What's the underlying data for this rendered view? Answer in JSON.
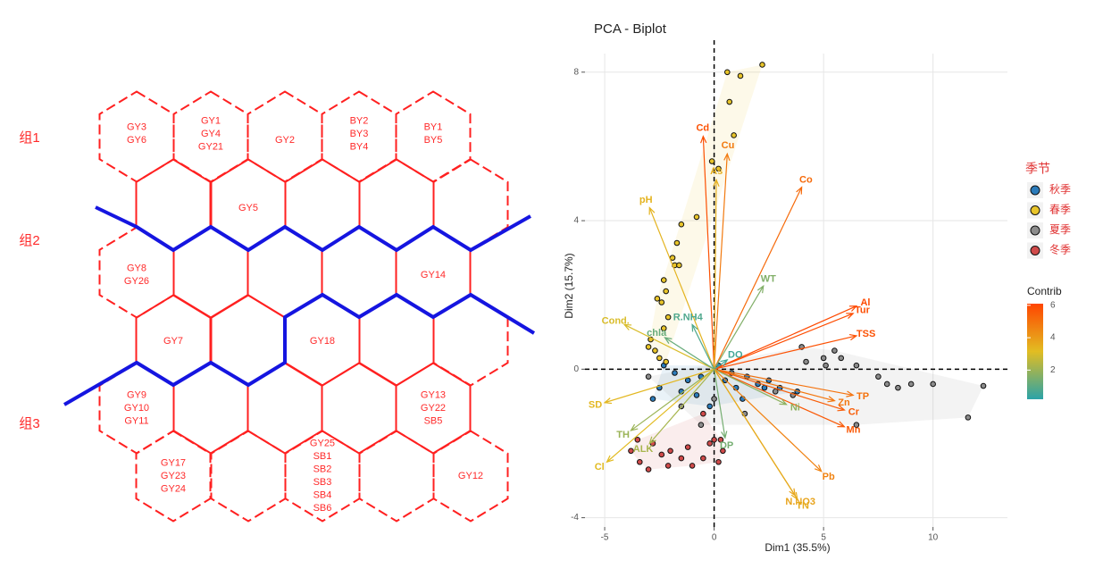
{
  "diagram": {
    "group_labels": [
      "组1",
      "组2",
      "组3"
    ],
    "cells": [
      [
        "GY3",
        "GY6"
      ],
      [
        "GY1",
        "GY4",
        "GY21"
      ],
      [
        "GY2"
      ],
      [
        "BY2",
        "BY3",
        "BY4"
      ],
      [
        "BY1",
        "BY5"
      ],
      [
        "GY5"
      ],
      [
        "GY8",
        "GY26"
      ],
      [
        "GY14"
      ],
      [
        "GY7"
      ],
      [
        "GY18"
      ],
      [
        "GY9",
        "GY10",
        "GY11"
      ],
      [
        "GY13",
        "GY22",
        "SB5"
      ],
      [
        "GY17",
        "GY23",
        "GY24"
      ],
      [
        "GY25",
        "SB1",
        "SB2",
        "SB3",
        "SB4",
        "SB6"
      ],
      [
        "GY12"
      ]
    ]
  },
  "chart_data": {
    "type": "biplot",
    "title": "PCA - Biplot",
    "x_label": "Dim1 (35.5%)",
    "y_label": "Dim2 (15.7%)",
    "xlim": [
      -5.9,
      13.4
    ],
    "ylim": [
      -4.25,
      8.5
    ],
    "xticks": [
      -5,
      0,
      5,
      10
    ],
    "yticks": [
      -4,
      0,
      4,
      8
    ],
    "grid": true,
    "legend_title": "季节",
    "series": [
      {
        "name": "秋季",
        "color": "#2b7bba",
        "x": [
          -2.3,
          -1.8,
          -1.2,
          -0.6,
          0.2,
          0.5,
          1.0,
          1.5,
          2.0,
          2.5,
          3.0,
          3.8,
          -2.5,
          -2.8,
          -1.5,
          0.8,
          2.3,
          -0.2,
          1.3,
          -0.8
        ],
        "y": [
          0.1,
          -0.1,
          -0.3,
          -0.2,
          0.1,
          -0.3,
          -0.5,
          -0.2,
          -0.4,
          -0.3,
          -0.5,
          -0.6,
          -0.5,
          -0.8,
          -0.6,
          -0.1,
          -0.5,
          -1.0,
          -0.8,
          -0.7
        ]
      },
      {
        "name": "春季",
        "color": "#e8c42a",
        "x": [
          0.6,
          2.2,
          1.2,
          0.7,
          0.9,
          0.2,
          -0.1,
          -0.8,
          -1.5,
          -1.7,
          -1.9,
          -2.3,
          -2.2,
          -2.4,
          -2.1,
          -2.6,
          -2.3,
          -2.9,
          -2.7,
          -2.5,
          -2.2,
          -3.0,
          -1.8,
          -1.6
        ],
        "y": [
          8.0,
          8.2,
          7.9,
          7.2,
          6.3,
          5.4,
          5.6,
          4.1,
          3.9,
          3.4,
          3.0,
          2.4,
          2.1,
          1.8,
          1.4,
          1.9,
          1.1,
          0.8,
          0.5,
          0.3,
          0.2,
          0.6,
          2.8,
          2.8
        ]
      },
      {
        "name": "夏季",
        "color": "#8c8c8c",
        "x": [
          4.0,
          5.0,
          5.5,
          6.5,
          7.5,
          7.9,
          8.4,
          9.0,
          10.0,
          12.3,
          11.6,
          6.5,
          5.1,
          4.2,
          3.6,
          2.8,
          -1.5,
          -3.0,
          0.0,
          1.4,
          -0.6,
          5.8
        ],
        "y": [
          0.6,
          0.3,
          0.5,
          0.1,
          -0.2,
          -0.4,
          -0.5,
          -0.4,
          -0.4,
          -0.45,
          -1.3,
          -1.5,
          0.1,
          0.2,
          -0.7,
          -0.6,
          -1.0,
          -0.2,
          -0.8,
          -1.2,
          -1.5,
          0.3
        ]
      },
      {
        "name": "冬季",
        "color": "#d04a4a",
        "x": [
          -3.8,
          -3.4,
          -2.8,
          -2.4,
          -2.0,
          -1.5,
          -1.0,
          -0.5,
          0.2,
          0.4,
          -0.2,
          0.0,
          0.3,
          -3.0,
          -2.1,
          -1.2,
          -0.5,
          -3.5
        ],
        "y": [
          -2.2,
          -2.5,
          -2.0,
          -2.3,
          -2.2,
          -2.4,
          -2.6,
          -2.4,
          -2.5,
          -2.2,
          -2.0,
          -1.9,
          -1.9,
          -2.7,
          -2.6,
          -2.1,
          -1.2,
          -1.9
        ]
      }
    ],
    "variables": {
      "names": [
        "Cd",
        "Cu",
        "As",
        "Co",
        "pH",
        "WT",
        "Al",
        "Tur",
        "TSS",
        "Cond.",
        "R.NH4",
        "chla",
        "DO",
        "SD",
        "TH",
        "Cl",
        "ALK",
        "Zn",
        "TP",
        "Cr",
        "Mn",
        "Ni",
        "Pb",
        "N.NO3",
        "TN",
        "DP"
      ],
      "x": [
        -0.5,
        0.6,
        0.1,
        4.0,
        -2.95,
        2.25,
        6.5,
        6.35,
        6.5,
        -4.1,
        -1.0,
        -2.25,
        0.6,
        -5.0,
        -3.8,
        -4.9,
        -2.95,
        5.5,
        6.35,
        5.95,
        5.95,
        3.3,
        4.9,
        3.7,
        3.8,
        0.5
      ],
      "y": [
        6.27,
        5.8,
        5.1,
        4.9,
        4.35,
        2.24,
        1.7,
        1.5,
        0.9,
        1.2,
        1.2,
        0.85,
        0.25,
        -0.9,
        -1.65,
        -2.5,
        -2.0,
        -0.85,
        -0.7,
        -1.1,
        -1.55,
        -0.95,
        -2.75,
        -3.4,
        -3.5,
        -1.85
      ],
      "contrib": [
        5.8,
        4.8,
        3.5,
        5.2,
        3.4,
        1.6,
        6.0,
        5.9,
        5.8,
        3.0,
        0.8,
        1.2,
        0.6,
        3.3,
        2.0,
        3.2,
        2.2,
        4.9,
        5.0,
        5.5,
        5.6,
        1.8,
        4.6,
        3.8,
        3.6,
        1.4
      ]
    },
    "contrib_title": "Contrib",
    "contrib_lim": [
      0.2,
      6.1
    ],
    "contrib_ticks": [
      2,
      4,
      6
    ],
    "contrib_colors": [
      "#2aa3a8",
      "#e2bd22",
      "#ff4500"
    ]
  }
}
